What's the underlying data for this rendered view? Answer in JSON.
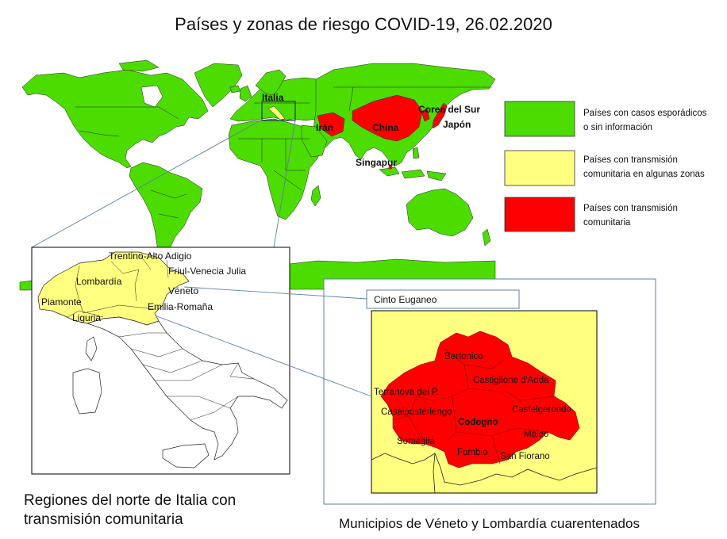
{
  "title": "Países y zonas de riesgo COVID-19, 26.02.2020",
  "colors": {
    "green": "#4CDC00",
    "yellow": "#FFFF80",
    "red": "#FF0000",
    "connector": "#5B7FA6"
  },
  "legend": [
    {
      "color": "#4CDC00",
      "lines": [
        "Países con casos esporádicos",
        "o sin información"
      ]
    },
    {
      "color": "#FFFF80",
      "lines": [
        "Países con transmisión",
        "comunitaria en algunas zonas"
      ]
    },
    {
      "color": "#FF0000",
      "lines": [
        "Países con transmisión",
        "comunitaria"
      ]
    }
  ],
  "world_map": {
    "labels": [
      {
        "name": "Italia",
        "fill": "#FFFF80"
      },
      {
        "name": "Corea del Sur",
        "fill": "#FF0000"
      },
      {
        "name": "Japón",
        "fill": "#FF0000"
      },
      {
        "name": "Irán",
        "fill": "#FF0000"
      },
      {
        "name": "China",
        "fill": "#FF0000"
      },
      {
        "name": "Singapur",
        "fill": "#FF0000"
      }
    ]
  },
  "italy_inset": {
    "regions": [
      "Trentino-Alto Adigio",
      "Friul-Venecia Julia",
      "Lombardía",
      "Véneto",
      "Piamonte",
      "Emilia-Romaña",
      "Liguria"
    ]
  },
  "cinto_euganeo": "Cinto Euganeo",
  "lombardy_inset": {
    "municipalities": [
      "Bertonico",
      "Castiglione d'Adda",
      "Terranova dei P.",
      "Castelgerondo",
      "Casalpusterlengo",
      "Codogno",
      "Somaglia",
      "Maleo",
      "Fombio",
      "San Fiorano"
    ]
  },
  "captions": {
    "italy": [
      "Regiones del norte de Italia con",
      "transmisión comunitaria"
    ],
    "lombardy": "Municipios de Véneto y Lombardía cuarentenados"
  }
}
